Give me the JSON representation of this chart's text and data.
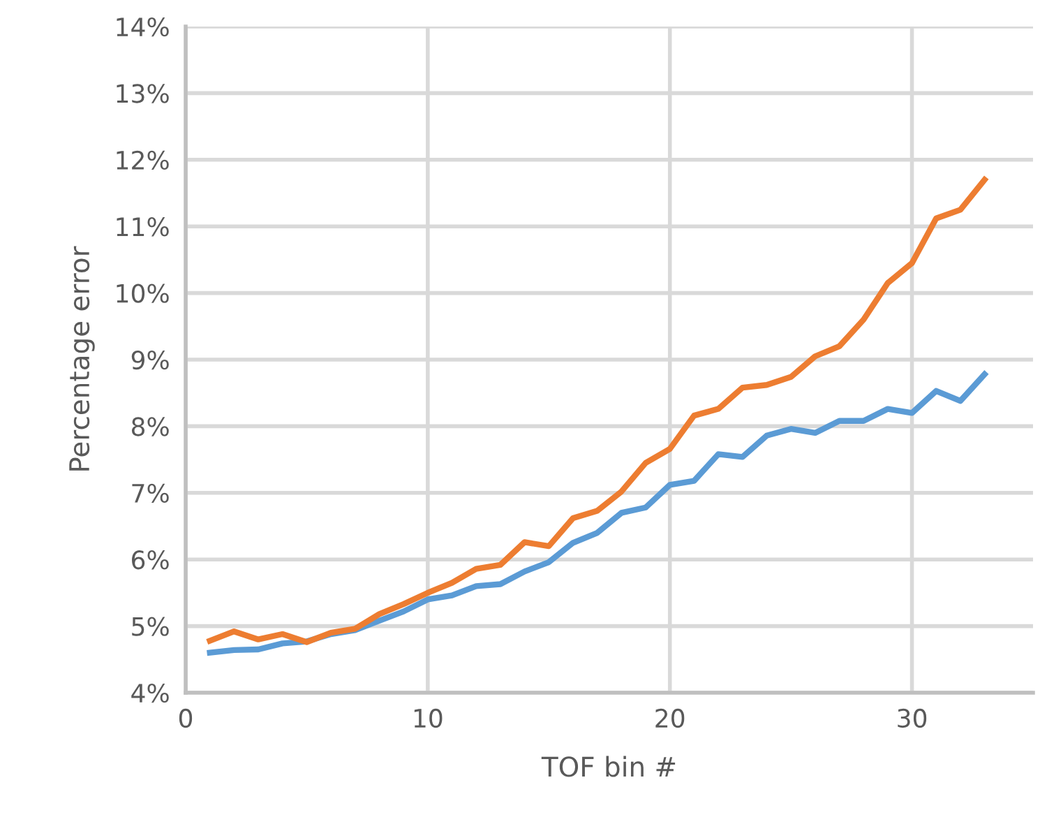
{
  "chart_data": {
    "type": "line",
    "xlabel": "TOF bin #",
    "ylabel": "Percentage error",
    "x": [
      1,
      2,
      3,
      4,
      5,
      6,
      7,
      8,
      9,
      10,
      11,
      12,
      13,
      14,
      15,
      16,
      17,
      18,
      19,
      20,
      21,
      22,
      23,
      24,
      25,
      26,
      27,
      28,
      29,
      30,
      31,
      32,
      33
    ],
    "series": [
      {
        "color": "#5b9bd5",
        "values": [
          4.6,
          4.64,
          4.65,
          4.74,
          4.77,
          4.88,
          4.94,
          5.08,
          5.22,
          5.4,
          5.46,
          5.6,
          5.63,
          5.82,
          5.96,
          6.25,
          6.4,
          6.7,
          6.78,
          7.12,
          7.18,
          7.58,
          7.54,
          7.86,
          7.96,
          7.9,
          8.08,
          8.08,
          8.26,
          8.2,
          8.53,
          8.38,
          8.78
        ]
      },
      {
        "color": "#ed7d31",
        "values": [
          4.78,
          4.92,
          4.8,
          4.88,
          4.76,
          4.9,
          4.96,
          5.18,
          5.33,
          5.5,
          5.65,
          5.86,
          5.92,
          6.26,
          6.2,
          6.62,
          6.73,
          7.02,
          7.45,
          7.66,
          8.16,
          8.26,
          8.58,
          8.62,
          8.74,
          9.05,
          9.2,
          9.6,
          10.15,
          10.45,
          11.12,
          11.25,
          11.7
        ]
      }
    ],
    "xlim": [
      0,
      35
    ],
    "xticks": [
      0,
      10,
      20,
      30
    ],
    "ylim": [
      4,
      14
    ],
    "yticks": [
      {
        "value": 4,
        "label": "4%"
      },
      {
        "value": 5,
        "label": "5%"
      },
      {
        "value": 6,
        "label": "6%"
      },
      {
        "value": 7,
        "label": "7%"
      },
      {
        "value": 8,
        "label": "8%"
      },
      {
        "value": 9,
        "label": "9%"
      },
      {
        "value": 10,
        "label": "10%"
      },
      {
        "value": 11,
        "label": "11%"
      },
      {
        "value": 12,
        "label": "12%"
      },
      {
        "value": 13,
        "label": "13%"
      },
      {
        "value": 14,
        "label": "14%"
      }
    ],
    "grid": true,
    "marker": "none",
    "line_style": "solid"
  }
}
